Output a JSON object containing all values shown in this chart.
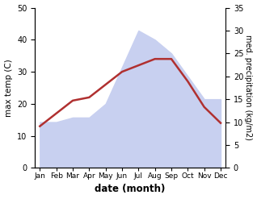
{
  "months": [
    "Jan",
    "Feb",
    "Mar",
    "Apr",
    "May",
    "Jun",
    "Jul",
    "Aug",
    "Sep",
    "Oct",
    "Nov",
    "Dec"
  ],
  "x": [
    0,
    1,
    2,
    3,
    4,
    5,
    6,
    7,
    8,
    9,
    10,
    11
  ],
  "precipitation_right": [
    10,
    10,
    11,
    11,
    14,
    22,
    30,
    28,
    25,
    20,
    15,
    15
  ],
  "temperature_left": [
    13,
    17,
    21,
    22,
    26,
    30,
    32,
    34,
    34,
    27,
    19,
    14
  ],
  "temp_color": "#b03030",
  "precip_fill_color": "#c8d0f0",
  "left_ylim": [
    0,
    50
  ],
  "right_ylim": [
    0,
    35
  ],
  "left_yticks": [
    0,
    10,
    20,
    30,
    40,
    50
  ],
  "right_yticks": [
    0,
    5,
    10,
    15,
    20,
    25,
    30,
    35
  ],
  "ylabel_left": "max temp (C)",
  "ylabel_right": "med. precipitation (kg/m2)",
  "xlabel": "date (month)",
  "figsize": [
    3.18,
    2.47
  ],
  "dpi": 100
}
